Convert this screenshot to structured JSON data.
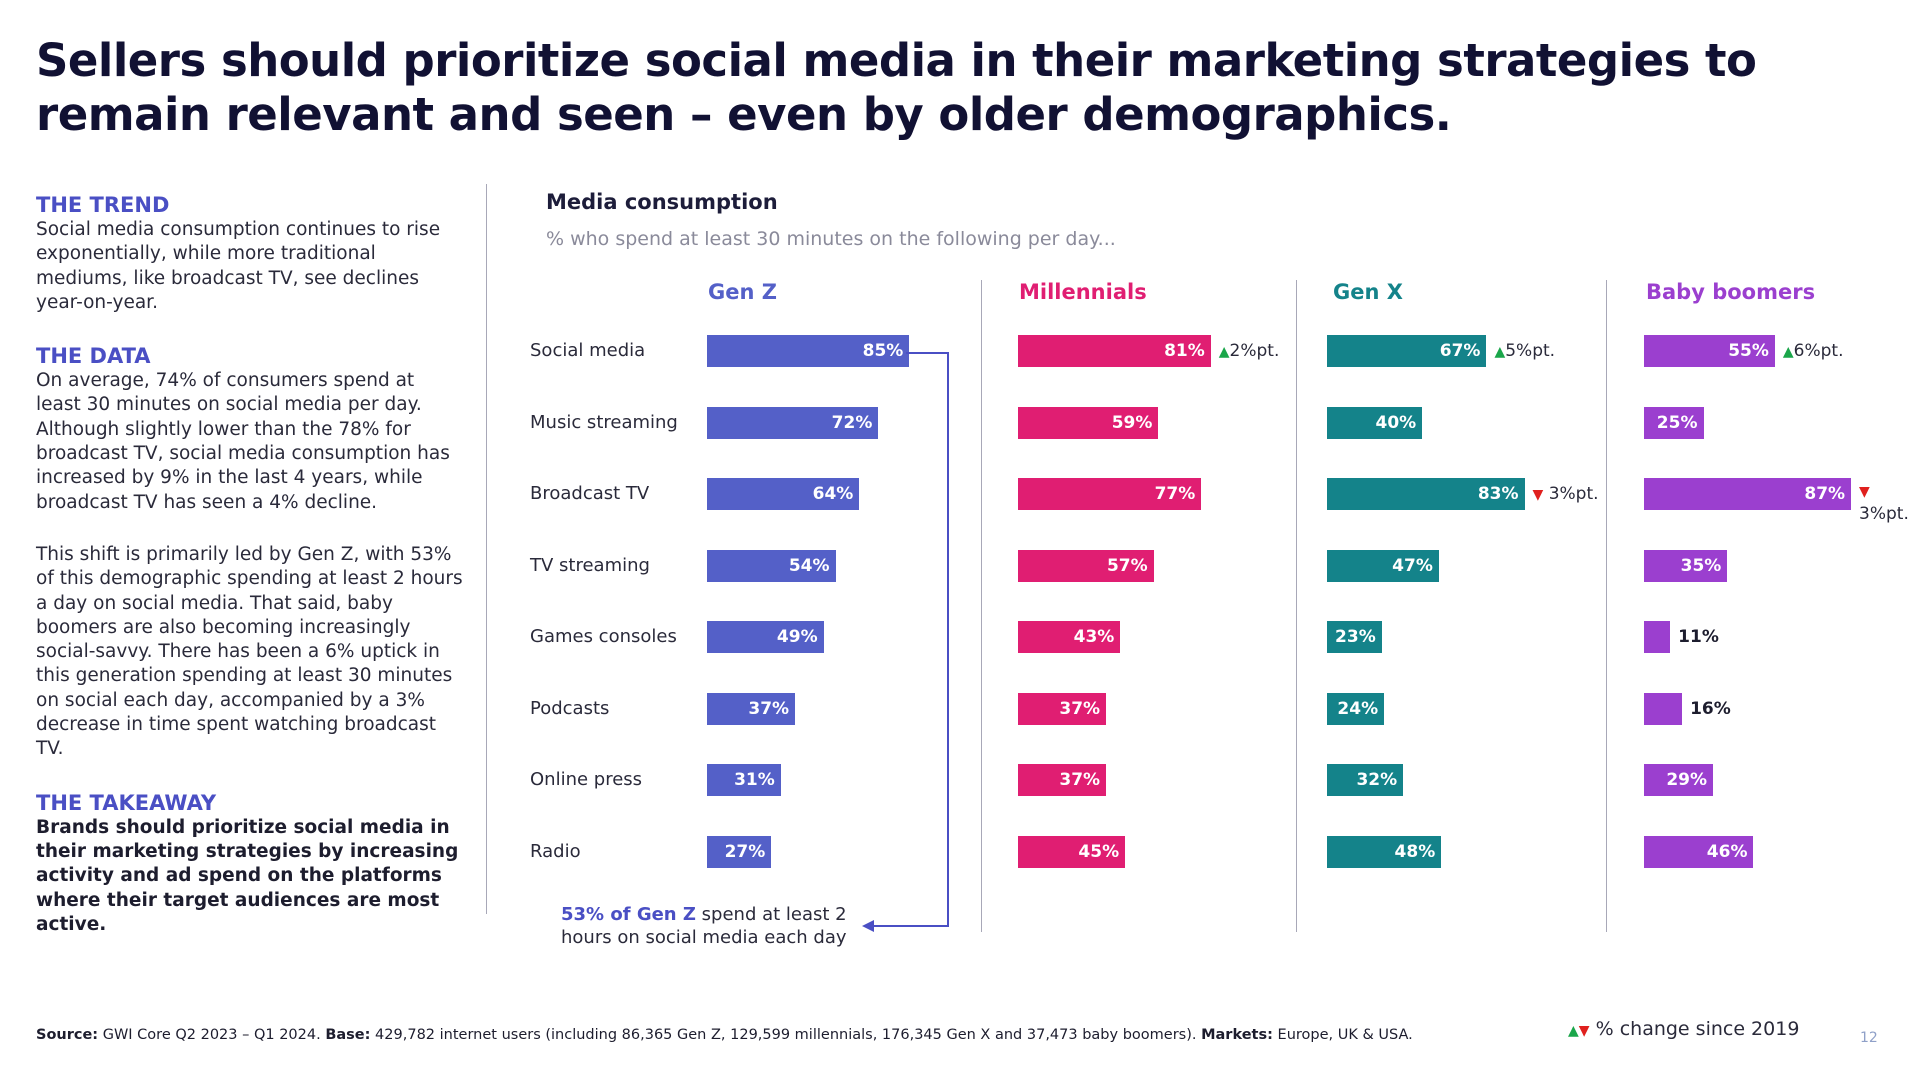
{
  "title": "Sellers should prioritize social media in their marketing strategies to remain relevant and seen – even by older demographics.",
  "left": {
    "trend_head": "THE TREND",
    "trend_body": "Social media consumption continues to rise exponentially, while more traditional mediums, like broadcast TV, see declines year-on-year.",
    "data_head": "THE DATA",
    "data_body1": "On average, 74% of consumers spend at least 30 minutes on social media per day. Although slightly lower than the 78% for broadcast TV, social media consumption has increased by 9% in the last 4 years, while broadcast TV has seen a 4% decline.",
    "data_body2": "This shift is primarily led by Gen Z, with 53% of this demographic spending at least 2 hours a day on social media. That said, baby boomers are also becoming increasingly social-savvy. There has been a 6% uptick in this generation spending at least 30 minutes on social each day, accompanied by a 3% decrease in time spent watching broadcast TV.",
    "takeaway_head": "THE TAKEAWAY",
    "takeaway_body": "Brands should prioritize social media in their marketing strategies by increasing activity and ad spend on the platforms where their target audiences are most active."
  },
  "chart_data": {
    "type": "bar",
    "orientation": "horizontal",
    "title": "Media consumption",
    "subtitle": "% who spend at least 30 minutes on the following per day...",
    "categories": [
      "Social media",
      "Music streaming",
      "Broadcast TV",
      "TV streaming",
      "Games consoles",
      "Podcasts",
      "Online press",
      "Radio"
    ],
    "value_suffix": "%",
    "series": [
      {
        "name": "Gen Z",
        "color": "#5460c8",
        "values": [
          85,
          72,
          64,
          54,
          49,
          37,
          31,
          27
        ],
        "changes": [
          null,
          null,
          null,
          null,
          null,
          null,
          null,
          null
        ]
      },
      {
        "name": "Millennials",
        "color": "#e01e72",
        "values": [
          81,
          59,
          77,
          57,
          43,
          37,
          37,
          45
        ],
        "changes": [
          {
            "dir": "up",
            "label": "2%pt."
          },
          null,
          null,
          null,
          null,
          null,
          null,
          null
        ]
      },
      {
        "name": "Gen X",
        "color": "#14838a",
        "values": [
          67,
          40,
          83,
          47,
          23,
          24,
          32,
          48
        ],
        "changes": [
          {
            "dir": "up",
            "label": "5%pt."
          },
          null,
          {
            "dir": "down",
            "label": "3%pt."
          },
          null,
          null,
          null,
          null,
          null
        ]
      },
      {
        "name": "Baby boomers",
        "color": "#9b3fcf",
        "values": [
          55,
          25,
          87,
          35,
          11,
          16,
          29,
          46
        ],
        "changes": [
          {
            "dir": "up",
            "label": "6%pt."
          },
          null,
          {
            "dir": "down",
            "label": "3%pt."
          },
          null,
          null,
          null,
          null,
          null
        ]
      }
    ]
  },
  "callout": {
    "highlight": "53% of Gen Z",
    "rest": " spend at least 2 hours on social media each day"
  },
  "footer": {
    "source_label": "Source:",
    "source_text": " GWI Core Q2 2023 – Q1 2024. ",
    "base_label": "Base:",
    "base_text": " 429,782 internet users (including 86,365 Gen Z, 129,599 millennials, 176,345 Gen X and 37,473 baby boomers). ",
    "markets_label": "Markets:",
    "markets_text": " Europe, UK & USA."
  },
  "legend": {
    "up_symbol": "▲",
    "down_symbol": "▼",
    "label": "% change since 2019"
  },
  "page_number": "12",
  "colors": {
    "accent": "#4a4fc4",
    "up": "#1aa64a",
    "down": "#e0201e"
  }
}
